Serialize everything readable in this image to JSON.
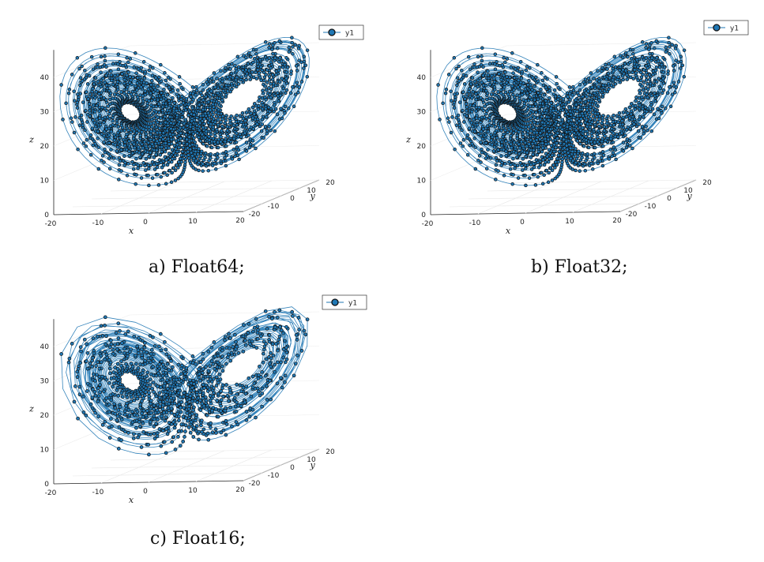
{
  "chart_data": [
    {
      "type": "scatter",
      "title": "",
      "caption": "a) Float64;",
      "xlabel": "x",
      "ylabel": "y",
      "zlabel": "z",
      "xlim": [
        -20,
        20
      ],
      "ylim": [
        -20,
        20
      ],
      "zlim": [
        0,
        48
      ],
      "xticks": [
        "-20",
        "-10",
        "0",
        "10",
        "20"
      ],
      "yticks": [
        "-20",
        "-10",
        "0",
        "10",
        "20"
      ],
      "zticks": [
        "0",
        "10",
        "20",
        "30",
        "40"
      ],
      "legend": "top-right",
      "series": [
        {
          "name": "y1",
          "color": "#1f77b4",
          "marker": "circle",
          "line": true,
          "density": "dense"
        }
      ]
    },
    {
      "type": "scatter",
      "title": "",
      "caption": "b) Float32;",
      "xlabel": "x",
      "ylabel": "y",
      "zlabel": "z",
      "xlim": [
        -20,
        20
      ],
      "ylim": [
        -20,
        20
      ],
      "zlim": [
        0,
        48
      ],
      "xticks": [
        "-20",
        "-10",
        "0",
        "10",
        "20"
      ],
      "yticks": [
        "-20",
        "-10",
        "0",
        "10",
        "20"
      ],
      "zticks": [
        "0",
        "10",
        "20",
        "30",
        "40"
      ],
      "legend": "top-right",
      "series": [
        {
          "name": "y1",
          "color": "#1f77b4",
          "marker": "circle",
          "line": true,
          "density": "dense"
        }
      ]
    },
    {
      "type": "scatter",
      "title": "",
      "caption": "c) Float16;",
      "xlabel": "x",
      "ylabel": "y",
      "zlabel": "z",
      "xlim": [
        -20,
        20
      ],
      "ylim": [
        -20,
        20
      ],
      "zlim": [
        0,
        48
      ],
      "xticks": [
        "-20",
        "-10",
        "0",
        "10",
        "20"
      ],
      "yticks": [
        "-20",
        "-10",
        "0",
        "10",
        "20"
      ],
      "zticks": [
        "0",
        "10",
        "20",
        "30",
        "40"
      ],
      "legend": "top-right",
      "series": [
        {
          "name": "y1",
          "color": "#1f77b4",
          "marker": "circle",
          "line": true,
          "density": "sparse"
        }
      ]
    }
  ]
}
